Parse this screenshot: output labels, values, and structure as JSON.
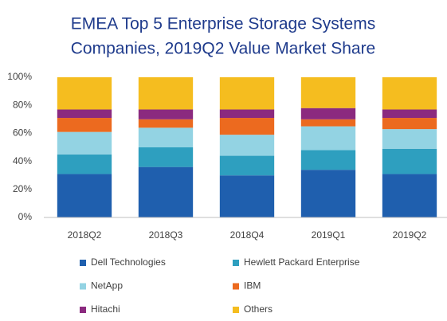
{
  "chart_data": {
    "type": "stacked_bar",
    "title": [
      "EMEA Top 5 Enterprise Storage Systems",
      "Companies, 2019Q2 Value Market Share"
    ],
    "categories": [
      "2018Q2",
      "2018Q3",
      "2018Q4",
      "2019Q1",
      "2019Q2"
    ],
    "series": [
      {
        "name": "Dell Technologies",
        "color": "#1f5fae",
        "values": [
          31,
          36,
          30,
          34,
          31
        ]
      },
      {
        "name": "Hewlett Packard Enterprise",
        "color": "#2e9fbf",
        "values": [
          14,
          14,
          14,
          14,
          18
        ]
      },
      {
        "name": "NetApp",
        "color": "#93d3e3",
        "values": [
          16,
          14,
          15,
          17,
          14
        ]
      },
      {
        "name": "IBM",
        "color": "#ec6a1f",
        "values": [
          10,
          6,
          12,
          5,
          8
        ]
      },
      {
        "name": "Hitachi",
        "color": "#8b2a7f",
        "values": [
          6,
          7,
          6,
          8,
          6
        ]
      },
      {
        "name": "Others",
        "color": "#f5bd1f",
        "values": [
          23,
          23,
          23,
          22,
          23
        ]
      }
    ],
    "ylim": [
      0,
      100
    ],
    "yticks": [
      {
        "value": 0,
        "label": "0%"
      },
      {
        "value": 20,
        "label": "20%"
      },
      {
        "value": 40,
        "label": "40%"
      },
      {
        "value": 60,
        "label": "60%"
      },
      {
        "value": 80,
        "label": "80%"
      },
      {
        "value": 100,
        "label": "100%"
      }
    ],
    "grid": false
  }
}
